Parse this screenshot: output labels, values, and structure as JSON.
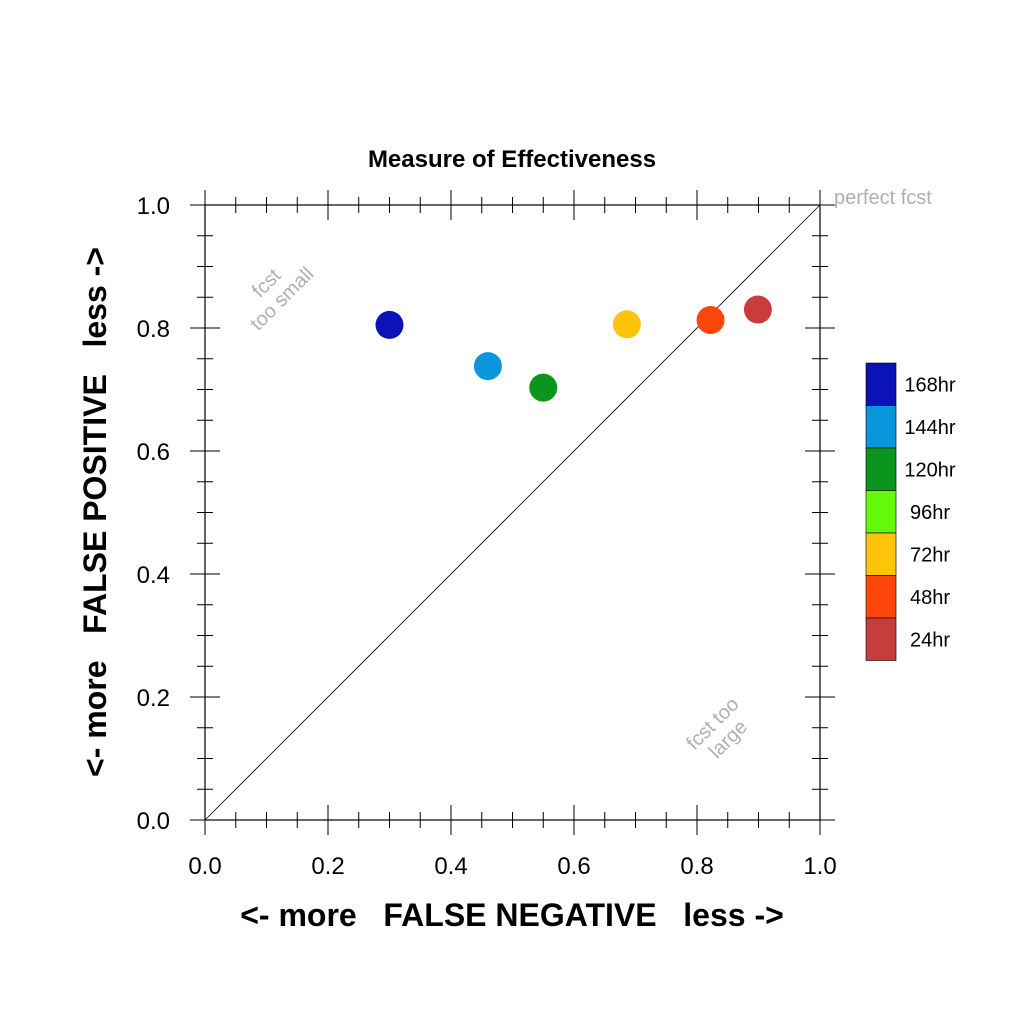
{
  "chart_data": {
    "type": "scatter",
    "title": "Measure of Effectiveness",
    "xlabel": "<- more   FALSE NEGATIVE   less ->",
    "ylabel": "<- more   FALSE POSITIVE   less ->",
    "xlim": [
      0,
      1
    ],
    "ylim": [
      0,
      1
    ],
    "x_ticks": [
      "0.0",
      "0.2",
      "0.4",
      "0.6",
      "0.8",
      "1.0"
    ],
    "y_ticks": [
      "0.0",
      "0.2",
      "0.4",
      "0.6",
      "0.8",
      "1.0"
    ],
    "grid": false,
    "diagonal_line": true,
    "annotations": {
      "perfect": "perfect fcst",
      "small_line1": "fcst",
      "small_line2": "too small",
      "large_line1": "fcst too",
      "large_line2": "large"
    },
    "legend_position": "right",
    "legend": [
      {
        "label": "168hr",
        "color": "#0a12b8"
      },
      {
        "label": "144hr",
        "color": "#0a96dc"
      },
      {
        "label": "120hr",
        "color": "#0a961e"
      },
      {
        "label": "96hr",
        "color": "#64fa0a"
      },
      {
        "label": "72hr",
        "color": "#ffc30a"
      },
      {
        "label": "48hr",
        "color": "#ff460a"
      },
      {
        "label": "24hr",
        "color": "#c83c3c"
      }
    ],
    "points": [
      {
        "label": "168hr",
        "x": 0.3,
        "y": 0.805,
        "color": "#0a12b8"
      },
      {
        "label": "144hr",
        "x": 0.46,
        "y": 0.738,
        "color": "#0a96dc"
      },
      {
        "label": "120hr",
        "x": 0.55,
        "y": 0.703,
        "color": "#0a961e"
      },
      {
        "label": "72hr",
        "x": 0.686,
        "y": 0.806,
        "color": "#ffc30a"
      },
      {
        "label": "48hr",
        "x": 0.822,
        "y": 0.813,
        "color": "#ff460a"
      },
      {
        "label": "24hr",
        "x": 0.899,
        "y": 0.83,
        "color": "#c83c3c"
      }
    ]
  }
}
